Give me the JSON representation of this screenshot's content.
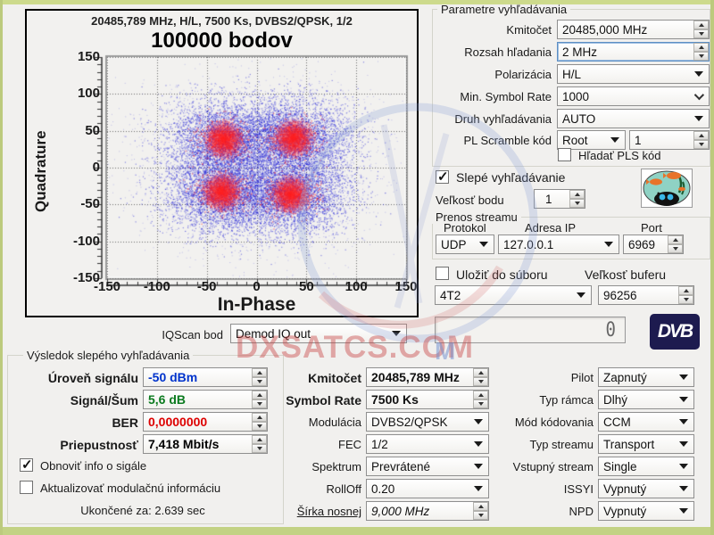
{
  "window": {
    "bg": "#f1f0ee",
    "frame_color": "#bcca7d"
  },
  "chart_data": {
    "type": "scatter",
    "title": "20485,789 MHz, H/L, 7500 Ks, DVBS2/QPSK, 1/2",
    "points_label": "100000 bodov",
    "xlabel": "In-Phase",
    "ylabel": "Quadrature",
    "xlim": [
      -150,
      150
    ],
    "ylim": [
      -150,
      150
    ],
    "xticks": [
      -150,
      -100,
      -50,
      0,
      50,
      100,
      150
    ],
    "yticks": [
      150,
      100,
      50,
      0,
      -50,
      -100,
      -150
    ],
    "grid": "dotted",
    "legend": "none",
    "series_note": "QPSK constellation: dense blue noise cloud with four red symbol clusters",
    "clusters": [
      {
        "x": -33,
        "y": 38
      },
      {
        "x": 37,
        "y": 40
      },
      {
        "x": -35,
        "y": -33
      },
      {
        "x": 34,
        "y": -36
      }
    ],
    "blue_sigma": 29,
    "red_sigma": 13,
    "blue_color": "#2020d8",
    "red_color": "#ff2020"
  },
  "iqscan": {
    "label": "IQScan bod",
    "value": "Demod IQ out"
  },
  "search_params": {
    "title": "Parametre vyhľadávania",
    "rows": [
      {
        "label": "Kmitočet",
        "value": "20485,000 MHz"
      },
      {
        "label": "Rozsah hľadania",
        "value": "2 MHz"
      },
      {
        "label": "Polarizácia",
        "value": "H/L"
      },
      {
        "label": "Min. Symbol Rate",
        "value": "1000"
      },
      {
        "label": "Druh vyhľadávania",
        "value": "AUTO"
      },
      {
        "label": "PL Scramble kód",
        "value": "Root",
        "value2": "1"
      }
    ],
    "pls_checkbox": {
      "label": "Hľadať PLS kód",
      "checked": false
    }
  },
  "blind_checkbox": {
    "label": "Slepé vyhľadávanie",
    "checked": true
  },
  "point_size": {
    "label": "Veľkosť bodu",
    "value": "1"
  },
  "stream": {
    "title": "Prenos streamu",
    "col_protocol": "Protokol",
    "col_ip": "Adresa IP",
    "col_port": "Port",
    "protocol": "UDP",
    "ip": "127.0.0.1",
    "port": "6969"
  },
  "save_file_checkbox": {
    "label": "Uložiť do súboru",
    "checked": false
  },
  "buffer": {
    "label": "Veľkosť buferu",
    "device": "4T2",
    "value": "96256"
  },
  "progress": {
    "digit": "0"
  },
  "dvb_logo": "DVB",
  "results": {
    "title": "Výsledok slepého vyhľadávania",
    "rows": [
      {
        "label": "Úroveň signálu",
        "value": "-50 dBm",
        "color": "#0033cc"
      },
      {
        "label": "Signál/Šum",
        "value": "5,6 dB",
        "color": "#0a7a1e"
      },
      {
        "label": "BER",
        "value": "0,0000000",
        "color": "#dd0000"
      },
      {
        "label": "Priepustnosť",
        "value": "7,418 Mbit/s",
        "color": "#000000"
      }
    ],
    "refresh_checkbox": {
      "label": "Obnoviť info o sigále",
      "checked": true
    },
    "update_checkbox": {
      "label": "Aktualizovať modulačnú informáciu",
      "checked": false
    },
    "finished": "Ukončené za: 2.639 sec"
  },
  "mod_info": {
    "rows": [
      {
        "label": "Kmitočet",
        "value": "20485,789 MHz"
      },
      {
        "label": "Symbol Rate",
        "value": "7500 Ks"
      },
      {
        "label": "Modulácia",
        "value": "DVBS2/QPSK"
      },
      {
        "label": "FEC",
        "value": "1/2"
      },
      {
        "label": "Spektrum",
        "value": "Prevrátené"
      },
      {
        "label": "RollOff",
        "value": "0.20"
      },
      {
        "label": "Šírka nosnej",
        "value": "9,000 MHz"
      }
    ]
  },
  "stream_info": {
    "rows": [
      {
        "label": "Pilot",
        "value": "Zapnutý"
      },
      {
        "label": "Typ rámca",
        "value": "Dlhý"
      },
      {
        "label": "Mód kódovania",
        "value": "CCM"
      },
      {
        "label": "Typ streamu",
        "value": "Transport"
      },
      {
        "label": "Vstupný stream",
        "value": "Single"
      },
      {
        "label": "ISSYI",
        "value": "Vypnutý"
      },
      {
        "label": "NPD",
        "value": "Vypnutý"
      }
    ]
  },
  "watermark": {
    "text": "DXSATCS.COM",
    "extra": "M"
  }
}
